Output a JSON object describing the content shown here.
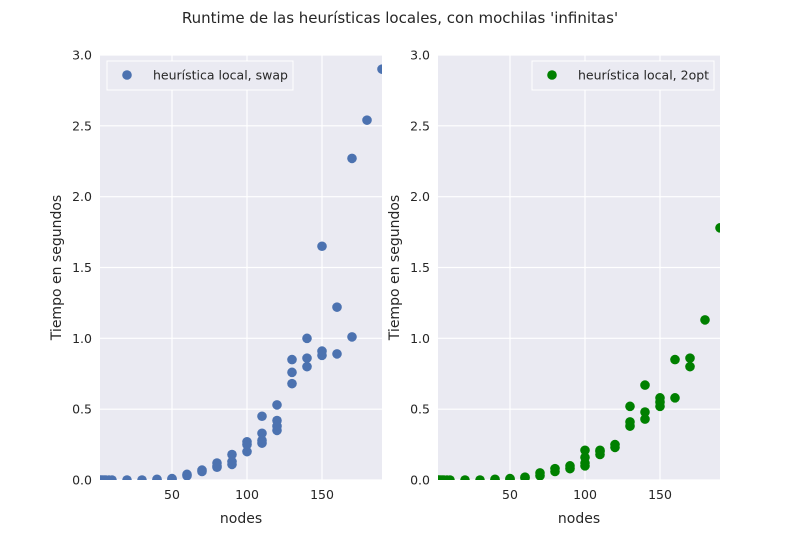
{
  "figure": {
    "title": "Runtime de las heurísticas locales, con mochilas 'infinitas'"
  },
  "chart_data": [
    {
      "type": "scatter",
      "xlabel": "nodes",
      "ylabel": "Tiempo en segundos",
      "xlim": [
        2,
        190
      ],
      "ylim": [
        0,
        3.0
      ],
      "xticks": [
        "50",
        "100",
        "150"
      ],
      "yticks": [
        "0.0",
        "0.5",
        "1.0",
        "1.5",
        "2.0",
        "2.5",
        "3.0"
      ],
      "grid": true,
      "legend": "top-left",
      "series": [
        {
          "name": "heurística local, swap",
          "color": "#4c72b0",
          "points": [
            [
              2,
              0
            ],
            [
              3,
              0
            ],
            [
              4,
              0
            ],
            [
              5,
              0
            ],
            [
              6,
              0
            ],
            [
              8,
              0
            ],
            [
              10,
              0
            ],
            [
              20,
              0
            ],
            [
              30,
              0
            ],
            [
              40,
              0
            ],
            [
              40,
              0.005
            ],
            [
              50,
              0.005
            ],
            [
              50,
              0.01
            ],
            [
              60,
              0.03
            ],
            [
              60,
              0.04
            ],
            [
              70,
              0.06
            ],
            [
              70,
              0.07
            ],
            [
              80,
              0.09
            ],
            [
              80,
              0.1
            ],
            [
              80,
              0.12
            ],
            [
              90,
              0.11
            ],
            [
              90,
              0.13
            ],
            [
              90,
              0.18
            ],
            [
              100,
              0.2
            ],
            [
              100,
              0.25
            ],
            [
              100,
              0.27
            ],
            [
              110,
              0.26
            ],
            [
              110,
              0.28
            ],
            [
              110,
              0.33
            ],
            [
              110,
              0.45
            ],
            [
              120,
              0.35
            ],
            [
              120,
              0.38
            ],
            [
              120,
              0.42
            ],
            [
              120,
              0.53
            ],
            [
              130,
              0.68
            ],
            [
              130,
              0.76
            ],
            [
              130,
              0.85
            ],
            [
              140,
              0.8
            ],
            [
              140,
              0.86
            ],
            [
              140,
              1.0
            ],
            [
              150,
              0.88
            ],
            [
              150,
              0.91
            ],
            [
              150,
              1.65
            ],
            [
              160,
              0.89
            ],
            [
              160,
              1.22
            ],
            [
              170,
              1.01
            ],
            [
              170,
              2.27
            ],
            [
              180,
              2.54
            ],
            [
              190,
              2.9
            ]
          ]
        }
      ]
    },
    {
      "type": "scatter",
      "xlabel": "nodes",
      "ylabel": "Tiempo en segundos",
      "xlim": [
        2,
        190
      ],
      "ylim": [
        0,
        3.0
      ],
      "xticks": [
        "50",
        "100",
        "150"
      ],
      "yticks": [
        "0.0",
        "0.5",
        "1.0",
        "1.5",
        "2.0",
        "2.5",
        "3.0"
      ],
      "grid": true,
      "legend": "top-right",
      "series": [
        {
          "name": "heurística local, 2opt",
          "color": "#008000",
          "points": [
            [
              2,
              0
            ],
            [
              3,
              0
            ],
            [
              4,
              0
            ],
            [
              5,
              0
            ],
            [
              6,
              0
            ],
            [
              8,
              0
            ],
            [
              10,
              0
            ],
            [
              20,
              0
            ],
            [
              30,
              0
            ],
            [
              40,
              0
            ],
            [
              40,
              0.005
            ],
            [
              50,
              0.005
            ],
            [
              50,
              0.01
            ],
            [
              60,
              0.015
            ],
            [
              60,
              0.02
            ],
            [
              70,
              0.03
            ],
            [
              70,
              0.05
            ],
            [
              80,
              0.06
            ],
            [
              80,
              0.08
            ],
            [
              90,
              0.08
            ],
            [
              90,
              0.1
            ],
            [
              100,
              0.1
            ],
            [
              100,
              0.12
            ],
            [
              100,
              0.16
            ],
            [
              100,
              0.21
            ],
            [
              110,
              0.18
            ],
            [
              110,
              0.2
            ],
            [
              110,
              0.21
            ],
            [
              120,
              0.23
            ],
            [
              120,
              0.25
            ],
            [
              130,
              0.38
            ],
            [
              130,
              0.41
            ],
            [
              130,
              0.52
            ],
            [
              140,
              0.43
            ],
            [
              140,
              0.48
            ],
            [
              140,
              0.67
            ],
            [
              150,
              0.52
            ],
            [
              150,
              0.55
            ],
            [
              150,
              0.58
            ],
            [
              160,
              0.58
            ],
            [
              160,
              0.85
            ],
            [
              170,
              0.8
            ],
            [
              170,
              0.86
            ],
            [
              180,
              1.13
            ],
            [
              190,
              1.78
            ]
          ]
        }
      ]
    }
  ]
}
